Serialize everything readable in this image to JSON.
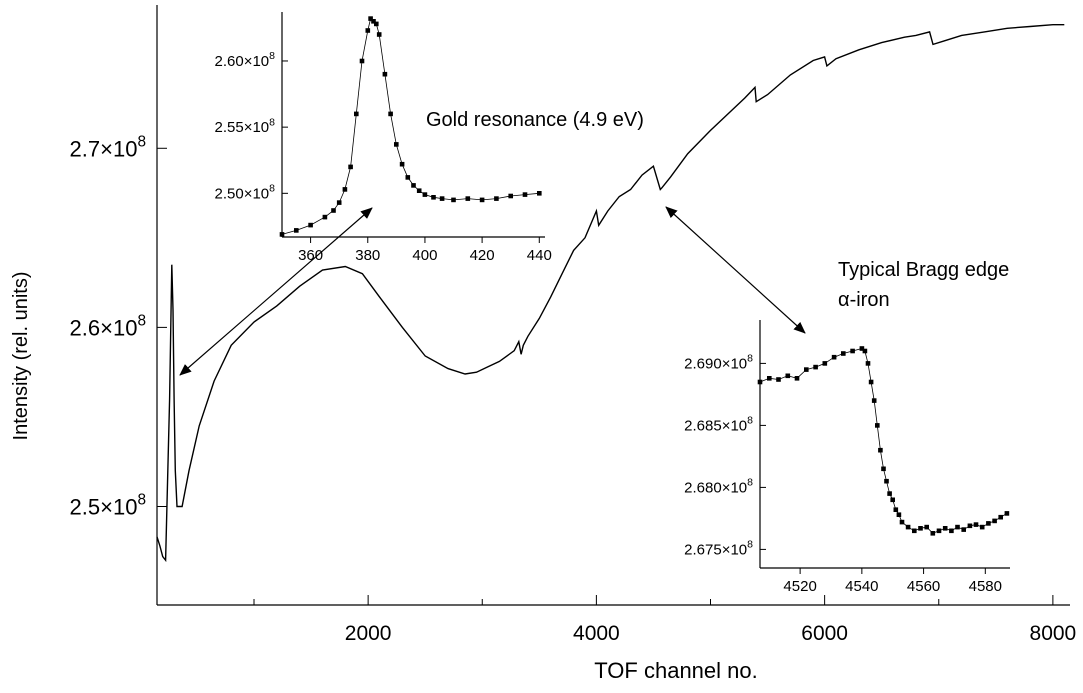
{
  "chart_data": {
    "type": "line",
    "xlabel": "TOF channel no.",
    "ylabel": "Intensity (rel. units)",
    "xlim": [
      150,
      8150
    ],
    "ylim": [
      244500000.0,
      278000000.0
    ],
    "x_ticks": [
      {
        "value": 2000,
        "label": "2000"
      },
      {
        "value": 4000,
        "label": "4000"
      },
      {
        "value": 6000,
        "label": "6000"
      },
      {
        "value": 8000,
        "label": "8000"
      }
    ],
    "x_minor_ticks": [
      1000,
      3000,
      5000,
      7000
    ],
    "y_ticks": [
      {
        "value": 250000000.0,
        "m": "2.5",
        "e": "8"
      },
      {
        "value": 260000000.0,
        "m": "2.6",
        "e": "8"
      },
      {
        "value": 270000000.0,
        "m": "2.7",
        "e": "8"
      }
    ],
    "series": [
      {
        "x": [
          150,
          175,
          200,
          225,
          260,
          280,
          290,
          300,
          310,
          325,
          370,
          430,
          520,
          650,
          800,
          1000,
          1200,
          1400,
          1600,
          1800,
          1950,
          2100,
          2300,
          2500,
          2700,
          2850,
          2950,
          3050,
          3150,
          3280,
          3320,
          3340,
          3360,
          3400,
          3500,
          3600,
          3700,
          3800,
          3900,
          4000,
          4020,
          4100,
          4200,
          4300,
          4400,
          4500,
          4560,
          4575,
          4650,
          4800,
          5000,
          5200,
          5300,
          5390,
          5400,
          5500,
          5700,
          5900,
          6000,
          6020,
          6100,
          6300,
          6500,
          6700,
          6800,
          6920,
          6950,
          7050,
          7200,
          7400,
          7600,
          7800,
          8000,
          8100
        ],
        "y": [
          248300000.0,
          247800000.0,
          247200000.0,
          247000000.0,
          256000000.0,
          263500000.0,
          261000000.0,
          256000000.0,
          252000000.0,
          250000000.0,
          250000000.0,
          252000000.0,
          254500000.0,
          257000000.0,
          259000000.0,
          260300000.0,
          261200000.0,
          262300000.0,
          263200000.0,
          263400000.0,
          263000000.0,
          261700000.0,
          260000000.0,
          258400000.0,
          257700000.0,
          257400000.0,
          257500000.0,
          257800000.0,
          258100000.0,
          258700000.0,
          259200000.0,
          258500000.0,
          259000000.0,
          259500000.0,
          260500000.0,
          261700000.0,
          263000000.0,
          264300000.0,
          265000000.0,
          266500000.0,
          265700000.0,
          266500000.0,
          267300000.0,
          267700000.0,
          268500000.0,
          269000000.0,
          267700000.0,
          267800000.0,
          268400000.0,
          269700000.0,
          271000000.0,
          272200000.0,
          272800000.0,
          273400000.0,
          272600000.0,
          273000000.0,
          274100000.0,
          274900000.0,
          275100000.0,
          274600000.0,
          275000000.0,
          275500000.0,
          275900000.0,
          276200000.0,
          276300000.0,
          276500000.0,
          275800000.0,
          276000000.0,
          276300000.0,
          276500000.0,
          276700000.0,
          276800000.0,
          276900000.0,
          276900000.0
        ]
      }
    ],
    "annotations": [
      {
        "text": "Gold resonance (4.9 eV)"
      },
      {
        "text": "Typical Bragg edge"
      },
      {
        "text": "α-iron"
      }
    ],
    "insets": [
      {
        "type": "scatter",
        "name": "gold-resonance",
        "xlim": [
          350,
          442
        ],
        "ylim": [
          246700000.0,
          263700000.0
        ],
        "x_ticks": [
          {
            "value": 360,
            "label": "360"
          },
          {
            "value": 380,
            "label": "380"
          },
          {
            "value": 400,
            "label": "400"
          },
          {
            "value": 420,
            "label": "420"
          },
          {
            "value": 440,
            "label": "440"
          }
        ],
        "y_ticks": [
          {
            "value": 250000000.0,
            "m": "2.50",
            "e": "8"
          },
          {
            "value": 255000000.0,
            "m": "2.55",
            "e": "8"
          },
          {
            "value": 260000000.0,
            "m": "2.60",
            "e": "8"
          }
        ],
        "x": [
          350,
          355,
          360,
          365,
          368,
          370,
          372,
          374,
          376,
          378,
          380,
          381,
          382,
          383,
          384,
          386,
          388,
          390,
          392,
          394,
          396,
          398,
          400,
          403,
          406,
          410,
          415,
          420,
          425,
          430,
          435,
          440
        ],
        "y": [
          246900000.0,
          247200000.0,
          247600000.0,
          248200000.0,
          248700000.0,
          249300000.0,
          250300000.0,
          252000000.0,
          256000000.0,
          260000000.0,
          262300000.0,
          263200000.0,
          263000000.0,
          262800000.0,
          262000000.0,
          259000000.0,
          256000000.0,
          253700000.0,
          252200000.0,
          251200000.0,
          250600000.0,
          250200000.0,
          249900000.0,
          249700000.0,
          249600000.0,
          249500000.0,
          249600000.0,
          249500000.0,
          249600000.0,
          249800000.0,
          249900000.0,
          250000000.0
        ]
      },
      {
        "type": "scatter",
        "name": "bragg-edge",
        "xlim": [
          4507,
          4588
        ],
        "ylim": [
          267350000.0,
          269350000.0
        ],
        "x_ticks": [
          {
            "value": 4520,
            "label": "4520"
          },
          {
            "value": 4540,
            "label": "4540"
          },
          {
            "value": 4560,
            "label": "4560"
          },
          {
            "value": 4580,
            "label": "4580"
          }
        ],
        "y_ticks": [
          {
            "value": 267500000.0,
            "m": "2.675",
            "e": "8"
          },
          {
            "value": 268000000.0,
            "m": "2.680",
            "e": "8"
          },
          {
            "value": 268500000.0,
            "m": "2.685",
            "e": "8"
          },
          {
            "value": 269000000.0,
            "m": "2.690",
            "e": "8"
          }
        ],
        "x": [
          4507,
          4510,
          4513,
          4516,
          4519,
          4522,
          4525,
          4528,
          4531,
          4534,
          4537,
          4540,
          4541,
          4542,
          4543,
          4544,
          4545,
          4546,
          4547,
          4548,
          4549,
          4550,
          4551,
          4552,
          4553,
          4555,
          4557,
          4559,
          4561,
          4563,
          4565,
          4567,
          4569,
          4571,
          4573,
          4575,
          4577,
          4579,
          4581,
          4583,
          4585,
          4587
        ],
        "y": [
          268850000.0,
          268880000.0,
          268870000.0,
          268900000.0,
          268880000.0,
          268950000.0,
          268970000.0,
          269000000.0,
          269050000.0,
          269080000.0,
          269100000.0,
          269120000.0,
          269100000.0,
          269000000.0,
          268850000.0,
          268700000.0,
          268500000.0,
          268300000.0,
          268150000.0,
          268050000.0,
          267950000.0,
          267900000.0,
          267820000.0,
          267780000.0,
          267720000.0,
          267680000.0,
          267650000.0,
          267670000.0,
          267680000.0,
          267630000.0,
          267650000.0,
          267670000.0,
          267650000.0,
          267680000.0,
          267660000.0,
          267690000.0,
          267700000.0,
          267680000.0,
          267710000.0,
          267730000.0,
          267760000.0,
          267790000.0
        ]
      }
    ]
  }
}
